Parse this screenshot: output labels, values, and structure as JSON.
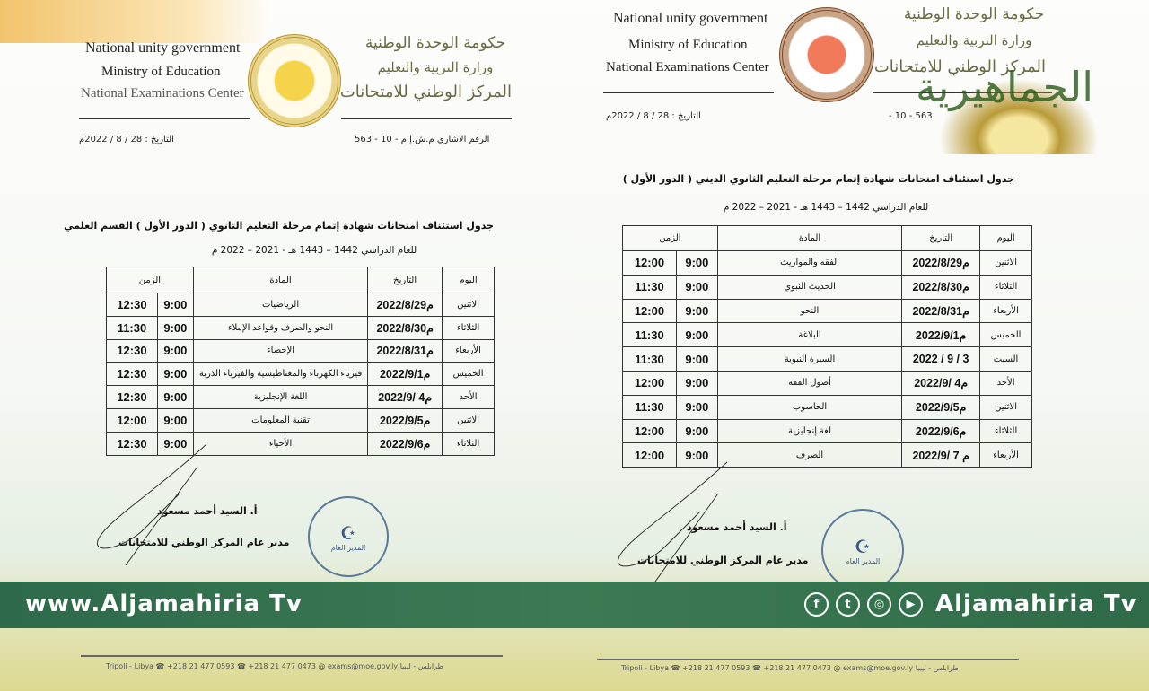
{
  "left_doc": {
    "header_en": [
      "National unity government",
      "Ministry of Education",
      "National Examinations Center"
    ],
    "header_ar": [
      "حكومة الوحدة الوطنية",
      "وزارة التربية والتعليم",
      "المركز الوطني للامتحانات"
    ],
    "date_label": "التاريخ : 28 / 8 / 2022م",
    "ref_label": "الرقم الاشاري م.ش.إ.م - 10 - 563",
    "title": "جدول استئناف امتحانات شهادة إتمام مرحلة التعليم الثانوي ( الدور الأول ) القسم العلمي",
    "subtitle": "للعام الدراسي 1442 – 1443 هـ - 2021 – 2022 م",
    "columns": {
      "day": "اليوم",
      "date": "التاريخ",
      "subject": "المادة",
      "time": "الزمن"
    },
    "rows": [
      {
        "day": "الاثنين",
        "date": "2022/8/29م",
        "subject": "الرياضيات",
        "start": "9:00",
        "end": "12:30"
      },
      {
        "day": "الثلاثاء",
        "date": "2022/8/30م",
        "subject": "النحو والصرف وقواعد الإملاء",
        "start": "9:00",
        "end": "11:30"
      },
      {
        "day": "الأربعاء",
        "date": "2022/8/31م",
        "subject": "الإحصاء",
        "start": "9:00",
        "end": "12:30"
      },
      {
        "day": "الخميس",
        "date": "2022/9/1م",
        "subject": "فيزياء الكهرباء والمغناطيسية والفيزياء الذرية",
        "start": "9:00",
        "end": "12:30"
      },
      {
        "day": "الأحد",
        "date": "2022/9/ 4م",
        "subject": "اللغة الإنجليزية",
        "start": "9:00",
        "end": "12:30"
      },
      {
        "day": "الاثنين",
        "date": "2022/9/5م",
        "subject": "تقنية المعلومات",
        "start": "9:00",
        "end": "12:00"
      },
      {
        "day": "الثلاثاء",
        "date": "2022/9/6م",
        "subject": "الأحياء",
        "start": "9:00",
        "end": "12:30"
      }
    ],
    "signatory_name": "أ. السيد أحمد مسعود",
    "signatory_title": "مدير عام المركز الوطني للامتحانات",
    "stamp_text": "المدير العام",
    "footer": "Tripoli - Libya  ☎ +218 21 477 0593  ☎ +218 21 477 0473  @ exams@moe.gov.ly  طرابلس - ليبيا"
  },
  "right_doc": {
    "header_en": [
      "National unity government",
      "Ministry of Education",
      "National Examinations Center"
    ],
    "header_ar": [
      "حكومة الوحدة الوطنية",
      "وزارة التربية والتعليم",
      "المركز الوطني للامتحانات"
    ],
    "date_label": "التاريخ : 28 / 8 / 2022م",
    "ref_label": "563 - 10 -",
    "title": "جدول استئناف امتحانات شهادة إتمام مرحلة التعليم الثانوي الديني ( الدور الأول )",
    "subtitle": "للعام الدراسي 1442 – 1443 هـ - 2021 – 2022 م",
    "columns": {
      "day": "اليوم",
      "date": "التاريخ",
      "subject": "المادة",
      "time": "الزمن"
    },
    "rows": [
      {
        "day": "الاثنين",
        "date": "2022/8/29م",
        "subject": "الفقه والمواريث",
        "start": "9:00",
        "end": "12:00"
      },
      {
        "day": "الثلاثاء",
        "date": "2022/8/30م",
        "subject": "الحديث النبوي",
        "start": "9:00",
        "end": "11:30"
      },
      {
        "day": "الأربعاء",
        "date": "2022/8/31م",
        "subject": "النحو",
        "start": "9:00",
        "end": "12:00"
      },
      {
        "day": "الخميس",
        "date": "2022/9/1م",
        "subject": "البلاغة",
        "start": "9:00",
        "end": "11:30"
      },
      {
        "day": "السبت",
        "date": "2022 / 9 / 3",
        "subject": "السيرة النبوية",
        "start": "9:00",
        "end": "11:30"
      },
      {
        "day": "الأحد",
        "date": "2022/9/ 4م",
        "subject": "أصول الفقه",
        "start": "9:00",
        "end": "12:00"
      },
      {
        "day": "الاثنين",
        "date": "2022/9/5م",
        "subject": "الحاسوب",
        "start": "9:00",
        "end": "11:30"
      },
      {
        "day": "الثلاثاء",
        "date": "2022/9/6م",
        "subject": "لغة إنجليزية",
        "start": "9:00",
        "end": "12:00"
      },
      {
        "day": "الأربعاء",
        "date": "2022/9/ 7 م",
        "subject": "الصرف",
        "start": "9:00",
        "end": "12:00"
      }
    ],
    "signatory_name": "أ. السيد أحمد مسعود",
    "signatory_title": "مدير عام المركز الوطني للامتحانات",
    "stamp_text": "المدير العام",
    "footer": "Tripoli - Libya  ☎ +218 21 477 0593  ☎ +218 21 477 0473  @ exams@moe.gov.ly  طرابلس - ليبيا"
  },
  "watermark_logo": "الجماهيرية",
  "banner": {
    "left_text": "www.Aljamahiria Tv",
    "right_text": "Aljamahiria Tv",
    "social_icons": [
      "facebook-icon",
      "twitter-icon",
      "instagram-icon",
      "youtube-icon"
    ],
    "color": "#2d6a4a"
  }
}
